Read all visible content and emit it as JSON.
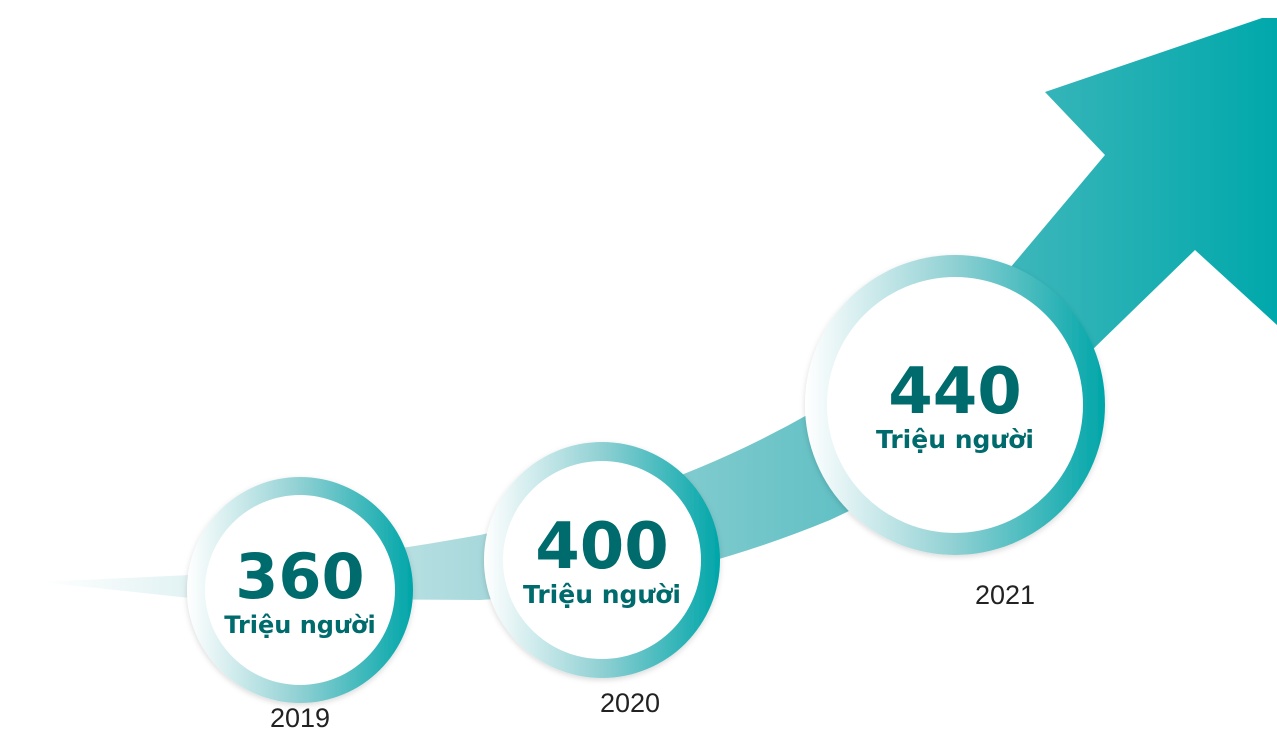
{
  "items": [
    {
      "value": "360",
      "unit": "Triệu người",
      "year": "2019"
    },
    {
      "value": "400",
      "unit": "Triệu người",
      "year": "2020"
    },
    {
      "value": "440",
      "unit": "Triệu người",
      "year": "2021"
    }
  ]
}
